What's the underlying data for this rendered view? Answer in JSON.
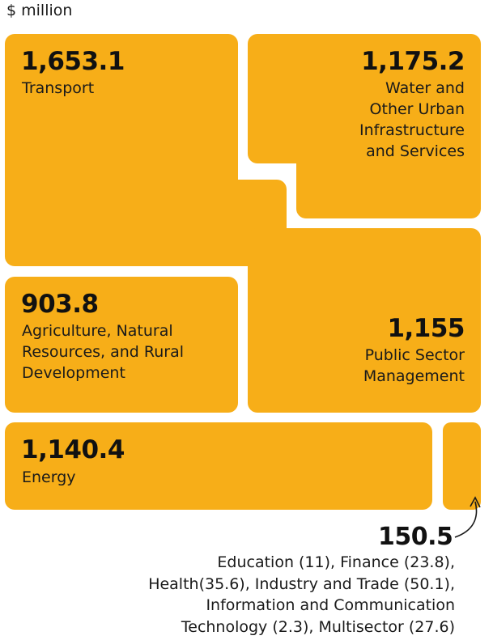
{
  "chart_data": {
    "type": "treemap",
    "unit_label": "$ million",
    "items": [
      {
        "value_label": "1,653.1",
        "value": 1653.1,
        "name": "Transport"
      },
      {
        "value_label": "1,175.2",
        "value": 1175.2,
        "name": "Water and\nOther Urban\nInfrastructure\nand Services"
      },
      {
        "value_label": "903.8",
        "value": 903.8,
        "name": "Agriculture, Natural\nResources, and Rural\nDevelopment"
      },
      {
        "value_label": "1,155",
        "value": 1155,
        "name": "Public Sector\nManagement"
      },
      {
        "value_label": "1,140.4",
        "value": 1140.4,
        "name": "Energy"
      },
      {
        "value_label": "150.5",
        "value": 150.5,
        "name": "Education (11), Finance (23.8),\nHealth(35.6), Industry and Trade (50.1),\nInformation and Communication\nTechnology (2.3), Multisector (27.6)"
      }
    ],
    "color": "#f7ae18"
  }
}
